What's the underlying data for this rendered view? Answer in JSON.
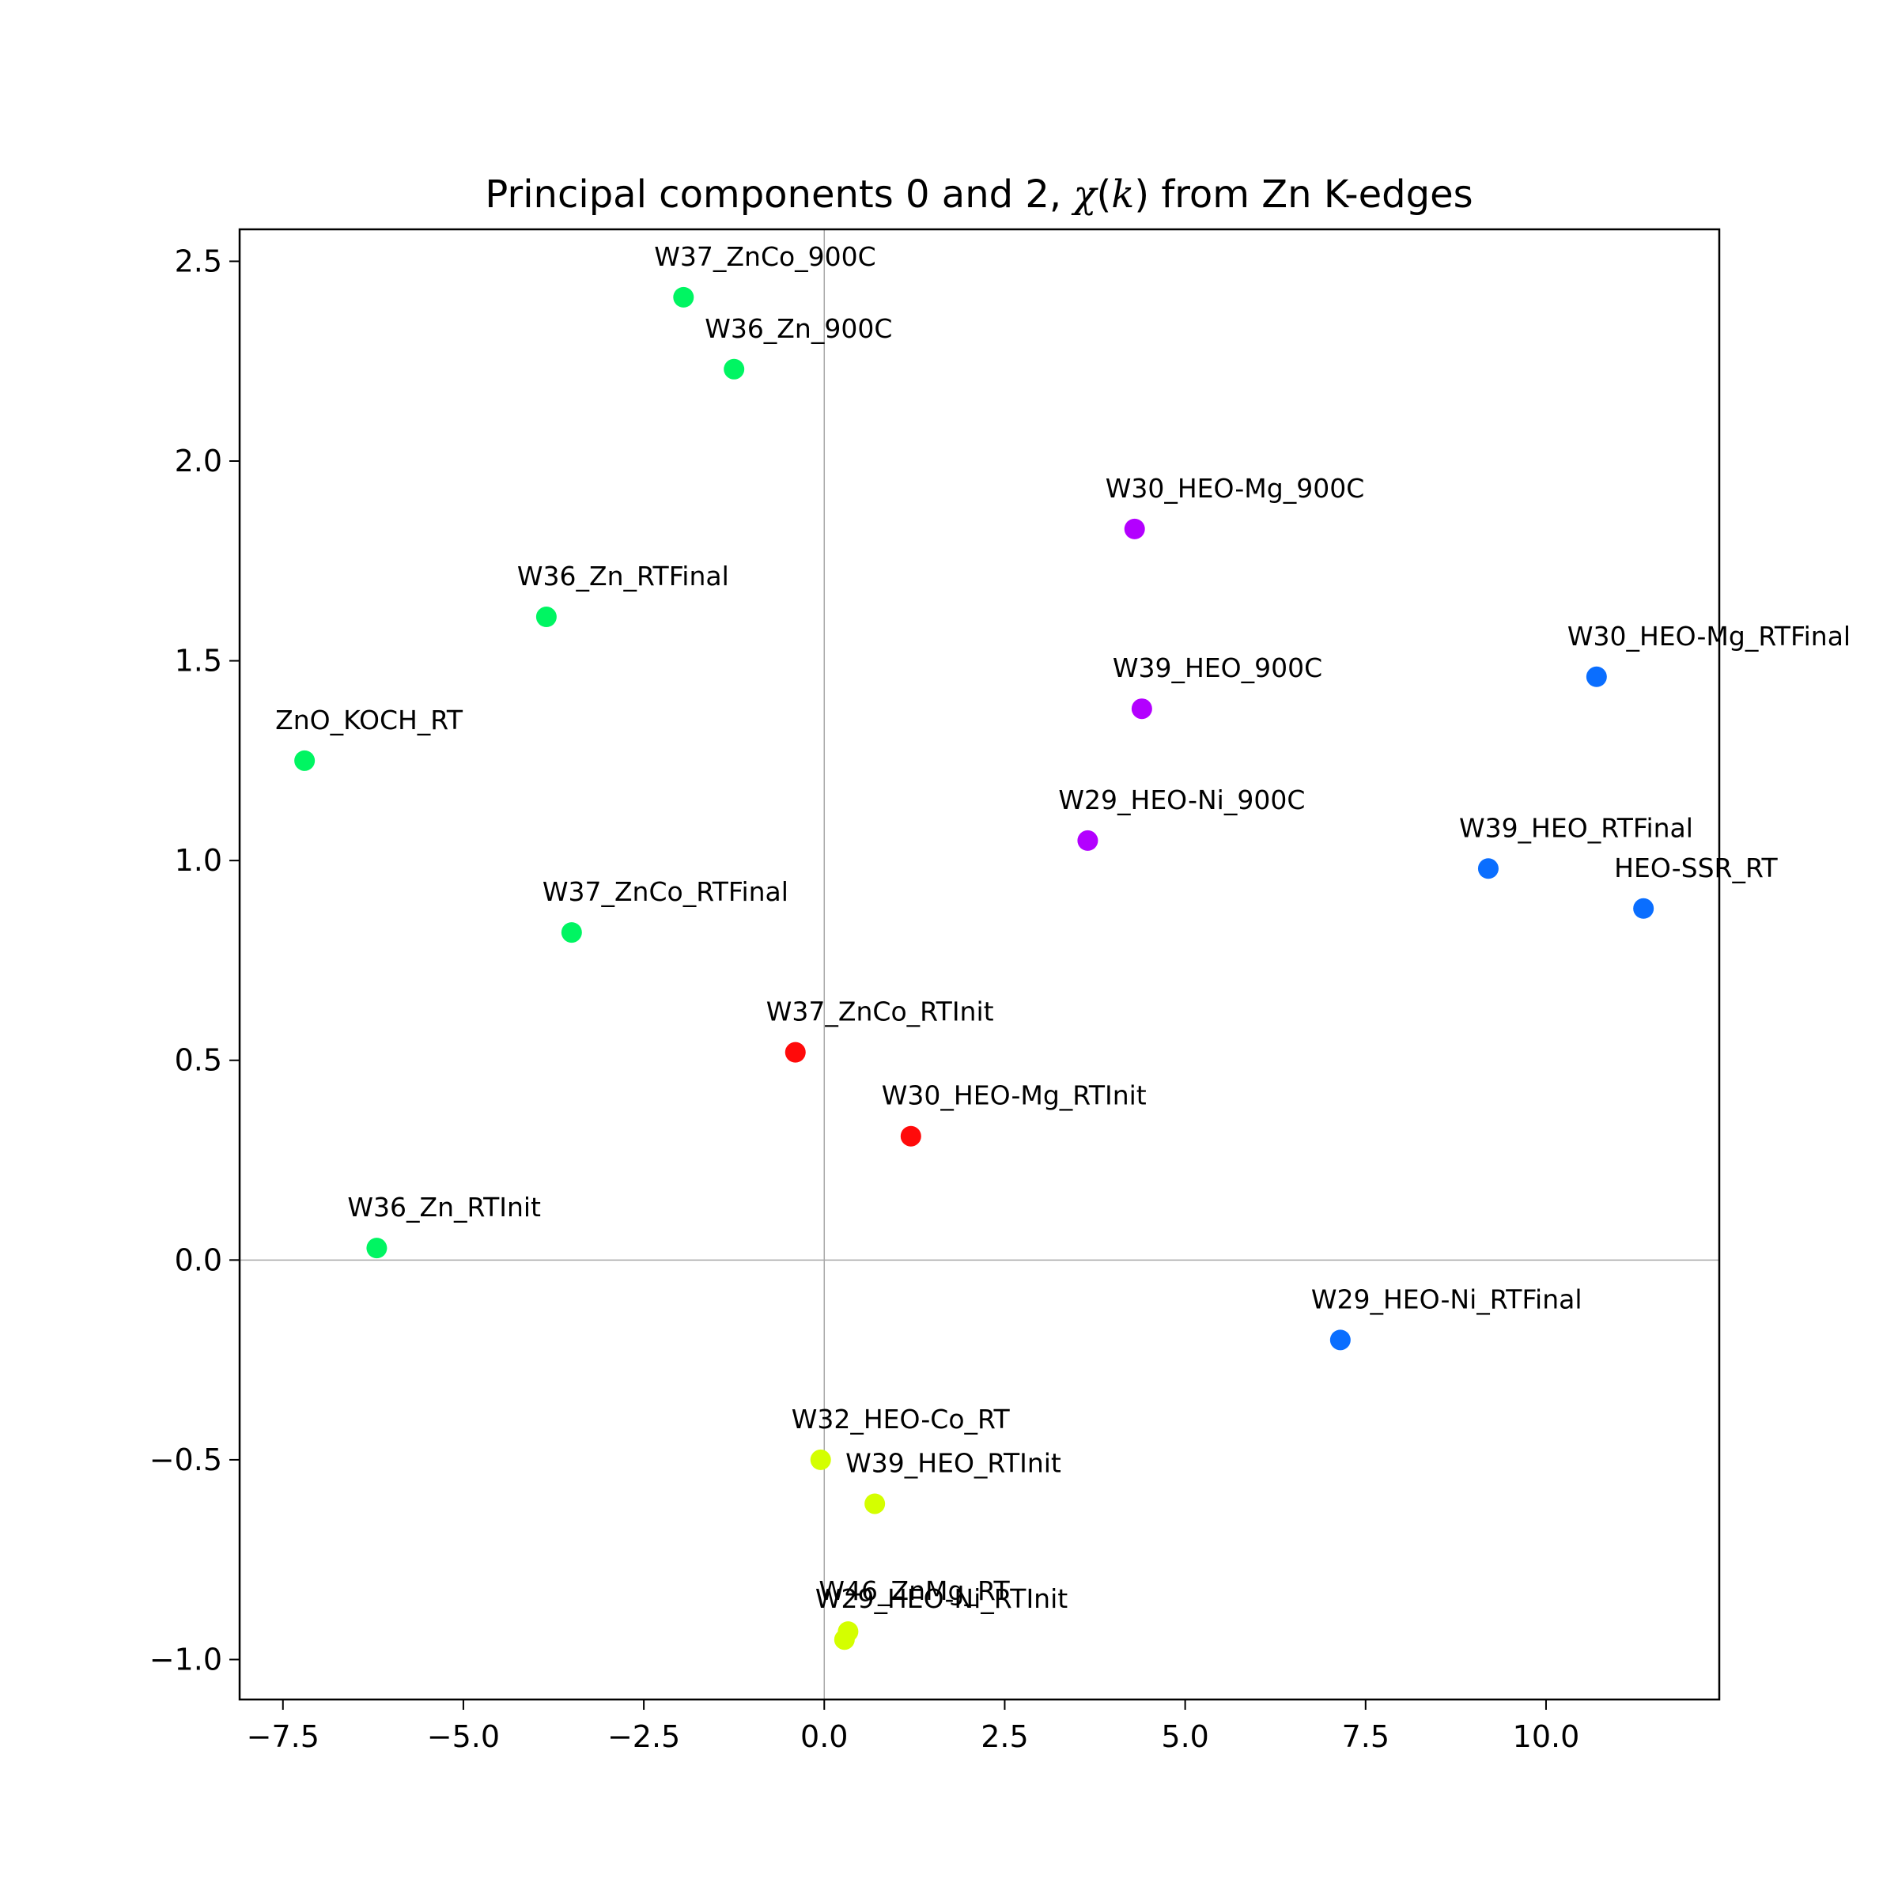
{
  "chart_data": {
    "type": "scatter",
    "title": "Principal components 0 and 2, χ(k) from Zn K-edges",
    "title_parts": {
      "before": "Principal components 0 and 2, ",
      "chi": "χ",
      "paren_open": "(",
      "k": "k",
      "after": ") from Zn K-edges"
    },
    "xlabel": "",
    "ylabel": "",
    "xlim": [
      -8.1,
      12.4
    ],
    "ylim": [
      -1.1,
      2.58
    ],
    "x_ticks": [
      -7.5,
      -5.0,
      -2.5,
      0.0,
      2.5,
      5.0,
      7.5,
      10.0
    ],
    "x_tick_labels": [
      "−7.5",
      "−5.0",
      "−2.5",
      "0.0",
      "2.5",
      "5.0",
      "7.5",
      "10.0"
    ],
    "y_ticks": [
      -1.0,
      -0.5,
      0.0,
      0.5,
      1.0,
      1.5,
      2.0,
      2.5
    ],
    "y_tick_labels": [
      "−1.0",
      "−0.5",
      "0.0",
      "0.5",
      "1.0",
      "1.5",
      "2.0",
      "2.5"
    ],
    "reference_lines": {
      "x": 0,
      "y": 0
    },
    "grid": false,
    "colors": {
      "green": "#00f562",
      "purple": "#b300ff",
      "blue": "#0a6eff",
      "red": "#ff0a0a",
      "yellow": "#d4ff00",
      "axis_line": "#000000",
      "reference_line": "#a8a8a8"
    },
    "points": [
      {
        "label": "W37_ZnCo_900C",
        "x": -1.95,
        "y": 2.41,
        "color": "green"
      },
      {
        "label": "W36_Zn_900C",
        "x": -1.25,
        "y": 2.23,
        "color": "green"
      },
      {
        "label": "W36_Zn_RTFinal",
        "x": -3.85,
        "y": 1.61,
        "color": "green"
      },
      {
        "label": "ZnO_KOCH_RT",
        "x": -7.2,
        "y": 1.25,
        "color": "green"
      },
      {
        "label": "W37_ZnCo_RTFinal",
        "x": -3.5,
        "y": 0.82,
        "color": "green"
      },
      {
        "label": "W36_Zn_RTInit",
        "x": -6.2,
        "y": 0.03,
        "color": "green"
      },
      {
        "label": "W30_HEO-Mg_900C",
        "x": 4.3,
        "y": 1.83,
        "color": "purple"
      },
      {
        "label": "W39_HEO_900C",
        "x": 4.4,
        "y": 1.38,
        "color": "purple"
      },
      {
        "label": "W29_HEO-Ni_900C",
        "x": 3.65,
        "y": 1.05,
        "color": "purple"
      },
      {
        "label": "W30_HEO-Mg_RTFinal",
        "x": 10.7,
        "y": 1.46,
        "color": "blue"
      },
      {
        "label": "W39_HEO_RTFinal",
        "x": 9.2,
        "y": 0.98,
        "color": "blue"
      },
      {
        "label": "HEO-SSR_RT",
        "x": 11.35,
        "y": 0.88,
        "color": "blue"
      },
      {
        "label": "W29_HEO-Ni_RTFinal",
        "x": 7.15,
        "y": -0.2,
        "color": "blue"
      },
      {
        "label": "W37_ZnCo_RTInit",
        "x": -0.4,
        "y": 0.52,
        "color": "red"
      },
      {
        "label": "W30_HEO-Mg_RTInit",
        "x": 1.2,
        "y": 0.31,
        "color": "red"
      },
      {
        "label": "W32_HEO-Co_RT",
        "x": -0.05,
        "y": -0.5,
        "color": "yellow"
      },
      {
        "label": "W39_HEO_RTInit",
        "x": 0.7,
        "y": -0.61,
        "color": "yellow"
      },
      {
        "label": "W46_ZnMg_RT",
        "x": 0.33,
        "y": -0.93,
        "color": "yellow"
      },
      {
        "label": "W29_HEO-Ni_RTInit",
        "x": 0.28,
        "y": -0.95,
        "color": "yellow"
      }
    ]
  }
}
